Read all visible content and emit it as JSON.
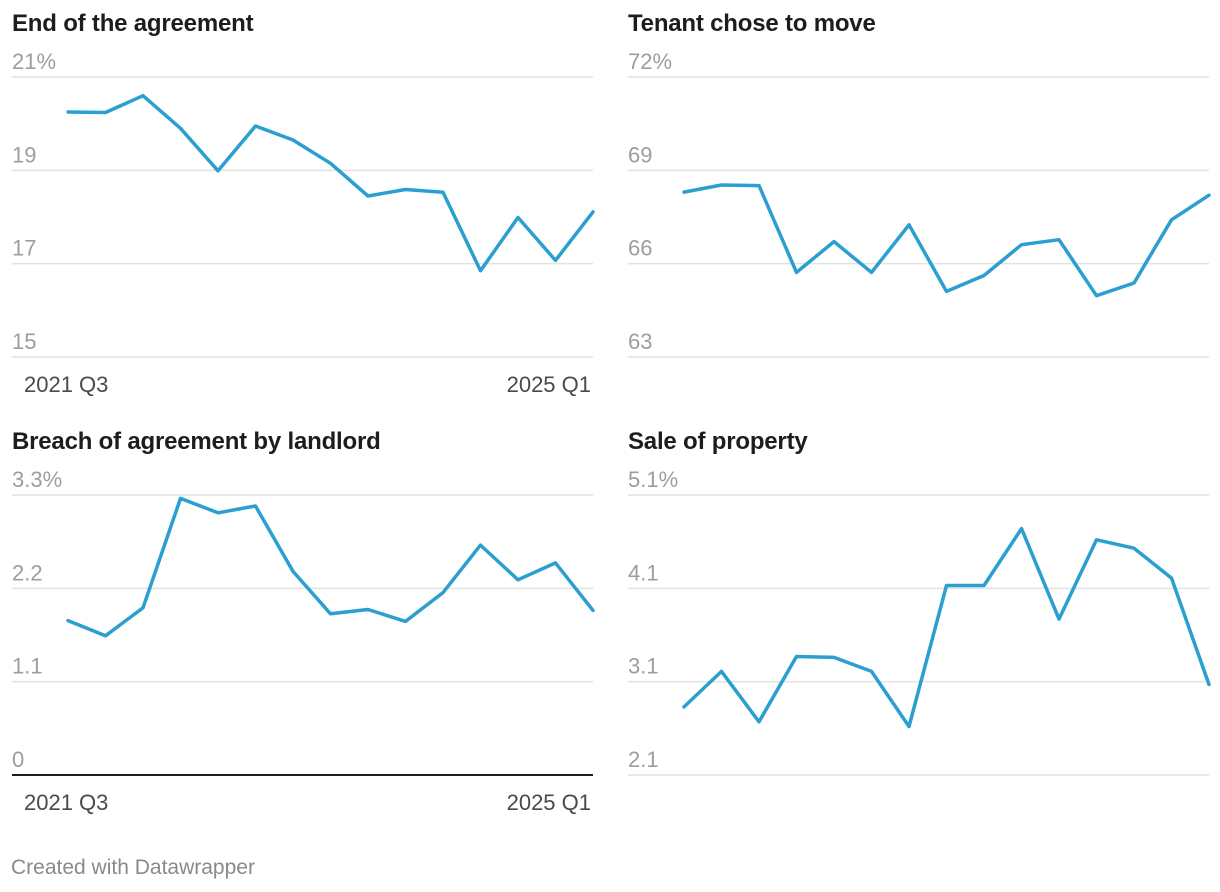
{
  "footer": "Created with Datawrapper",
  "chart_data": [
    {
      "type": "line",
      "title": "End of the agreement",
      "yticks": [
        "21%",
        "19",
        "17",
        "15"
      ],
      "ytick_values": [
        21,
        19,
        17,
        15
      ],
      "ylim": [
        15,
        21
      ],
      "xlabels": [
        "2021 Q3",
        "2025 Q1"
      ],
      "baseline_at_zero": false,
      "series": [
        {
          "name": "End of the agreement",
          "color": "#2a9fd0",
          "values": [
            20.25,
            20.24,
            20.6,
            19.9,
            18.99,
            19.95,
            19.65,
            19.15,
            18.45,
            18.59,
            18.53,
            16.85,
            17.99,
            17.07,
            18.11
          ]
        }
      ]
    },
    {
      "type": "line",
      "title": "Tenant chose to move",
      "yticks": [
        "72%",
        "69",
        "66",
        "63"
      ],
      "ytick_values": [
        72,
        69,
        66,
        63
      ],
      "ylim": [
        63,
        72
      ],
      "xlabels": [],
      "baseline_at_zero": false,
      "series": [
        {
          "name": "Tenant chose to move",
          "color": "#2a9fd0",
          "values": [
            68.3,
            68.53,
            68.51,
            65.72,
            66.71,
            65.72,
            67.25,
            65.11,
            65.62,
            66.61,
            66.77,
            64.97,
            65.38,
            67.41,
            68.2
          ]
        }
      ]
    },
    {
      "type": "line",
      "title": "Breach of agreement by landlord",
      "yticks": [
        "3.3%",
        "2.2",
        "1.1",
        "0"
      ],
      "ytick_values": [
        3.3,
        2.2,
        1.1,
        0
      ],
      "ylim": [
        0,
        3.3
      ],
      "xlabels": [
        "2021 Q3",
        "2025 Q1"
      ],
      "baseline_at_zero": true,
      "series": [
        {
          "name": "Breach of agreement by landlord",
          "color": "#2a9fd0",
          "values": [
            1.82,
            1.64,
            1.97,
            3.26,
            3.09,
            3.17,
            2.4,
            1.9,
            1.95,
            1.81,
            2.15,
            2.71,
            2.3,
            2.5,
            1.94
          ]
        }
      ]
    },
    {
      "type": "line",
      "title": "Sale of property",
      "yticks": [
        "5.1%",
        "4.1",
        "3.1",
        "2.1"
      ],
      "ytick_values": [
        5.1,
        4.1,
        3.1,
        2.1
      ],
      "ylim": [
        2.1,
        5.1
      ],
      "xlabels": [],
      "baseline_at_zero": false,
      "series": [
        {
          "name": "Sale of property",
          "color": "#2a9fd0",
          "values": [
            2.83,
            3.21,
            2.67,
            3.37,
            3.36,
            3.21,
            2.62,
            4.13,
            4.13,
            4.74,
            3.77,
            4.62,
            4.53,
            4.21,
            3.07
          ]
        }
      ]
    }
  ]
}
